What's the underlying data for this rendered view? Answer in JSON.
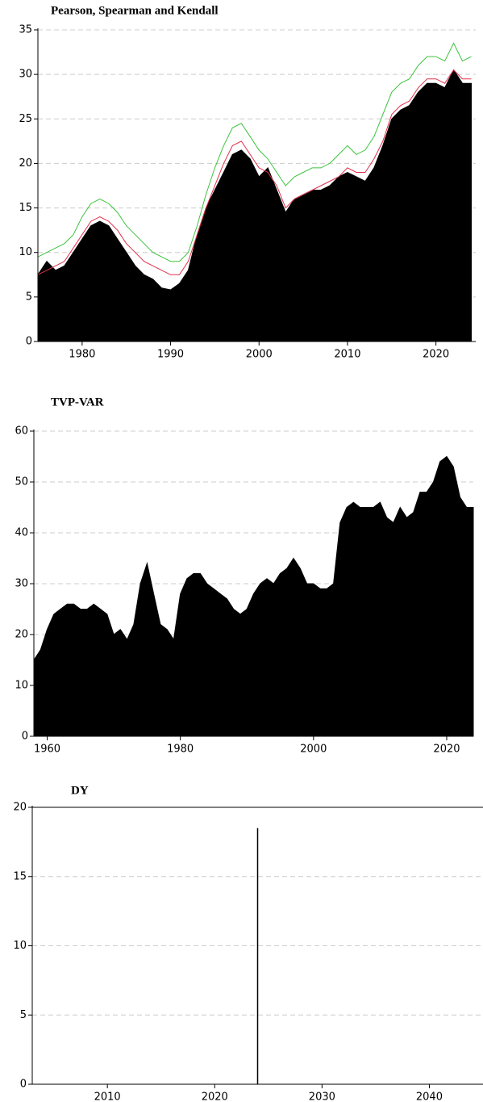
{
  "chart_data": [
    {
      "type": "area",
      "title": "Pearson, Spearman and Kendall",
      "x": [
        1975,
        1976,
        1977,
        1978,
        1979,
        1980,
        1981,
        1982,
        1983,
        1984,
        1985,
        1986,
        1987,
        1988,
        1989,
        1990,
        1991,
        1992,
        1993,
        1994,
        1995,
        1996,
        1997,
        1998,
        1999,
        2000,
        2001,
        2002,
        2003,
        2004,
        2005,
        2006,
        2007,
        2008,
        2009,
        2010,
        2011,
        2012,
        2013,
        2014,
        2015,
        2016,
        2017,
        2018,
        2019,
        2020,
        2021,
        2022,
        2023,
        2024
      ],
      "series": [
        {
          "color": "#000000",
          "fill": true,
          "values": [
            7.5,
            9,
            8,
            8.5,
            10,
            11.5,
            13,
            13.5,
            13,
            11.5,
            10,
            8.5,
            7.5,
            7,
            6,
            5.8,
            6.5,
            8,
            12,
            15,
            17,
            19,
            21,
            21.5,
            20.5,
            18.5,
            19.5,
            17,
            14.5,
            16,
            16.5,
            17,
            17,
            17.5,
            18.5,
            19,
            18.5,
            18,
            19.5,
            22,
            25,
            26,
            26.5,
            28,
            29,
            29,
            28.5,
            30.5,
            29,
            29
          ]
        },
        {
          "color": "#e0304a",
          "fill": false,
          "values": [
            7.5,
            8,
            8.5,
            9,
            10.5,
            12,
            13.5,
            14,
            13.5,
            12.5,
            11,
            10,
            9,
            8.5,
            8,
            7.5,
            7.5,
            9,
            12,
            15,
            17.5,
            20,
            22,
            22.5,
            21,
            19.5,
            19,
            17.5,
            15,
            16,
            16.5,
            17,
            17.5,
            18,
            18.5,
            19.5,
            19,
            19,
            20.5,
            22.5,
            25.5,
            26.5,
            27,
            28.5,
            29.5,
            29.5,
            29,
            30.5,
            29.5,
            29.5
          ]
        },
        {
          "color": "#3cc43c",
          "fill": false,
          "values": [
            9.5,
            10,
            10.5,
            11,
            12,
            14,
            15.5,
            16,
            15.5,
            14.5,
            13,
            12,
            11,
            10,
            9.5,
            9,
            9,
            10,
            13,
            16.5,
            19.5,
            22,
            24,
            24.5,
            23,
            21.5,
            20.5,
            19,
            17.5,
            18.5,
            19,
            19.5,
            19.5,
            20,
            21,
            22,
            21,
            21.5,
            23,
            25.5,
            28,
            29,
            29.5,
            31,
            32,
            32,
            31.5,
            33.5,
            31.5,
            32
          ]
        }
      ],
      "xlim": [
        1975,
        2024.5
      ],
      "xticks": [
        1980,
        1990,
        2000,
        2010,
        2020
      ],
      "ylim": [
        0,
        35
      ],
      "yticks": [
        0,
        5,
        10,
        15,
        20,
        25,
        30,
        35
      ],
      "grid": true
    },
    {
      "type": "area",
      "title": "TVP-VAR",
      "x": [
        1958,
        1959,
        1960,
        1961,
        1962,
        1963,
        1964,
        1965,
        1966,
        1967,
        1968,
        1969,
        1970,
        1971,
        1972,
        1973,
        1974,
        1975,
        1976,
        1977,
        1978,
        1979,
        1980,
        1981,
        1982,
        1983,
        1984,
        1985,
        1986,
        1987,
        1988,
        1989,
        1990,
        1991,
        1992,
        1993,
        1994,
        1995,
        1996,
        1997,
        1998,
        1999,
        2000,
        2001,
        2002,
        2003,
        2004,
        2005,
        2006,
        2007,
        2008,
        2009,
        2010,
        2011,
        2012,
        2013,
        2014,
        2015,
        2016,
        2017,
        2018,
        2019,
        2020,
        2021,
        2022,
        2023,
        2024
      ],
      "series": [
        {
          "color": "#000000",
          "fill": true,
          "values": [
            15,
            17,
            21,
            24,
            25,
            26,
            26,
            25,
            25,
            26,
            25,
            24,
            20,
            21,
            19,
            22,
            30,
            34,
            28,
            22,
            21,
            19,
            28,
            31,
            32,
            32,
            30,
            29,
            28,
            27,
            25,
            24,
            25,
            28,
            30,
            31,
            30,
            32,
            33,
            35,
            33,
            30,
            30,
            29,
            29,
            30,
            42,
            45,
            46,
            45,
            45,
            45,
            46,
            43,
            42,
            45,
            43,
            44,
            48,
            48,
            50,
            54,
            55,
            53,
            47,
            45,
            45
          ]
        }
      ],
      "xlim": [
        1958,
        2024
      ],
      "xticks": [
        1960,
        1980,
        2000,
        2020
      ],
      "ylim": [
        0,
        60
      ],
      "yticks": [
        0,
        10,
        20,
        30,
        40,
        50,
        60
      ],
      "grid": true
    },
    {
      "type": "spike",
      "title": "DY",
      "x": [
        2024
      ],
      "series": [
        {
          "color": "#000000",
          "values": [
            18.5
          ]
        }
      ],
      "xlim": [
        2003,
        2045
      ],
      "xticks": [
        2010,
        2020,
        2030,
        2040
      ],
      "ylim": [
        0,
        20
      ],
      "yticks": [
        0,
        5,
        10,
        15,
        20
      ],
      "grid": true
    }
  ]
}
